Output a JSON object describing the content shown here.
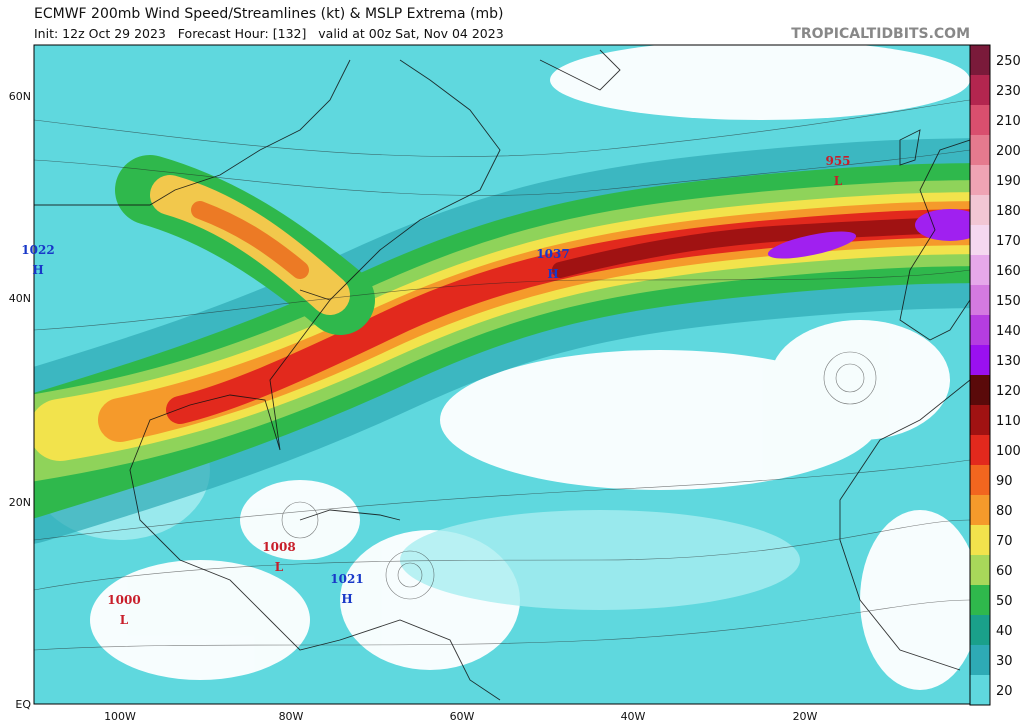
{
  "header": {
    "title": "ECMWF 200mb Wind Speed/Streamlines (kt) & MSLP Extrema (mb)",
    "subtitle": "Init: 12z Oct 29 2023   Forecast Hour: [132]   valid at 00z Sat, Nov 04 2023",
    "source": "TROPICALTIDBITS.COM"
  },
  "map": {
    "lat_labels": [
      "60N",
      "40N",
      "20N",
      "EQ"
    ],
    "lon_labels": [
      "100W",
      "80W",
      "60W",
      "40W",
      "20W"
    ],
    "extrema": [
      {
        "label": "1022",
        "symbol": "H"
      },
      {
        "label": "1037",
        "symbol": "H"
      },
      {
        "label": "955",
        "symbol": "L"
      },
      {
        "label": "1008",
        "symbol": "L"
      },
      {
        "label": "1000",
        "symbol": "L"
      },
      {
        "label": "1021",
        "symbol": "H"
      }
    ]
  },
  "colorbar": {
    "ticks": [
      250,
      230,
      210,
      200,
      190,
      180,
      170,
      160,
      150,
      140,
      130,
      120,
      110,
      100,
      90,
      80,
      70,
      60,
      50,
      40,
      30,
      20
    ]
  }
}
